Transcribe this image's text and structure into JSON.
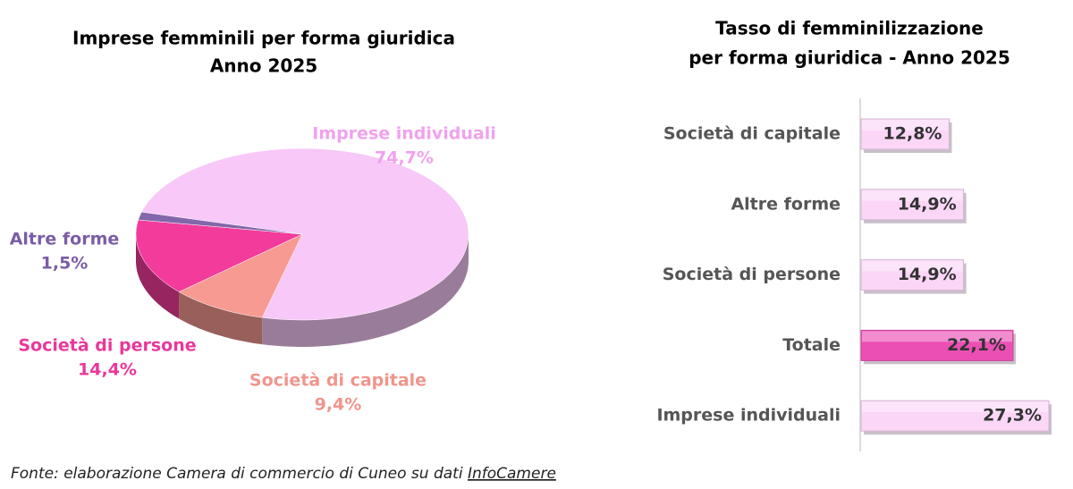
{
  "chart_data": [
    {
      "type": "pie",
      "title": [
        "Imprese femminili per forma giuridica",
        "Anno 2025"
      ],
      "categories": [
        "Imprese individuali",
        "Società di capitale",
        "Società di persone",
        "Altre forme"
      ],
      "values": [
        74.7,
        9.4,
        14.4,
        1.5
      ],
      "value_labels": [
        "74,7%",
        "9,4%",
        "14,4%",
        "1,5%"
      ],
      "colors": [
        "#f7c8f8",
        "#f69a92",
        "#f23b9b",
        "#8466aa"
      ],
      "label_colors": [
        "#f0a2ee",
        "#f0958c",
        "#e9389a",
        "#7b5ca6"
      ]
    },
    {
      "type": "hbar",
      "title": [
        "Tasso di femminilizzazione",
        "per forma giuridica - Anno 2025"
      ],
      "categories": [
        "Società di capitale",
        "Altre forme",
        "Società di persone",
        "Totale",
        "Imprese individuali"
      ],
      "values": [
        12.8,
        14.9,
        14.9,
        22.1,
        27.3
      ],
      "value_labels": [
        "12,8%",
        "14,9%",
        "14,9%",
        "22,1%",
        "27,3%"
      ],
      "colors": [
        "#fbd6f7",
        "#fbd6f7",
        "#fbd6f7",
        "#ec4fb4",
        "#fbd6f7"
      ]
    }
  ],
  "footer": {
    "text": "Fonte: elaborazione Camera di commercio di Cuneo su dati ",
    "link": "InfoCamere"
  }
}
